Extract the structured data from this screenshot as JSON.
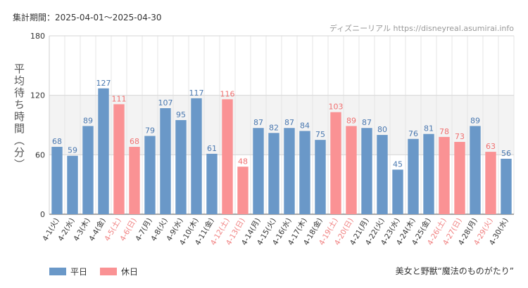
{
  "header": {
    "period_label": "集計期間：2025-04-01〜2025-04-30",
    "source_label": "ディズニーリアル https://disneyreal.asumirai.info"
  },
  "footer": {
    "attraction_label": "美女と野獣“魔法のものがたり”"
  },
  "colors": {
    "weekday": "#6a98c8",
    "holiday": "#fa9294",
    "holiday_tick": "#f08080"
  },
  "chart_data": {
    "type": "bar",
    "title": "",
    "xlabel": "",
    "ylabel": "平均待ち時間（分）",
    "ylim": [
      0,
      180
    ],
    "yticks": [
      0,
      60,
      120,
      180
    ],
    "legend": [
      {
        "name": "平日",
        "key": "weekday"
      },
      {
        "name": "休日",
        "key": "holiday"
      }
    ],
    "categories": [
      "4-1(火)",
      "4-2(水)",
      "4-3(木)",
      "4-4(金)",
      "4-5(土)",
      "4-6(日)",
      "4-7(月)",
      "4-8(火)",
      "4-9(水)",
      "4-10(木)",
      "4-11(金)",
      "4-12(土)",
      "4-13(日)",
      "4-14(月)",
      "4-15(火)",
      "4-16(水)",
      "4-17(木)",
      "4-18(金)",
      "4-19(土)",
      "4-20(日)",
      "4-21(月)",
      "4-22(火)",
      "4-23(水)",
      "4-24(木)",
      "4-25(金)",
      "4-26(土)",
      "4-27(日)",
      "4-28(月)",
      "4-29(火)",
      "4-30(水)"
    ],
    "values": [
      68,
      59,
      89,
      127,
      111,
      68,
      79,
      107,
      95,
      117,
      61,
      116,
      48,
      87,
      82,
      87,
      84,
      75,
      103,
      89,
      87,
      80,
      45,
      76,
      81,
      78,
      73,
      89,
      63,
      56
    ],
    "day_type": [
      "weekday",
      "weekday",
      "weekday",
      "weekday",
      "holiday",
      "holiday",
      "weekday",
      "weekday",
      "weekday",
      "weekday",
      "weekday",
      "holiday",
      "holiday",
      "weekday",
      "weekday",
      "weekday",
      "weekday",
      "weekday",
      "holiday",
      "holiday",
      "weekday",
      "weekday",
      "weekday",
      "weekday",
      "weekday",
      "holiday",
      "holiday",
      "weekday",
      "holiday",
      "weekday"
    ]
  }
}
